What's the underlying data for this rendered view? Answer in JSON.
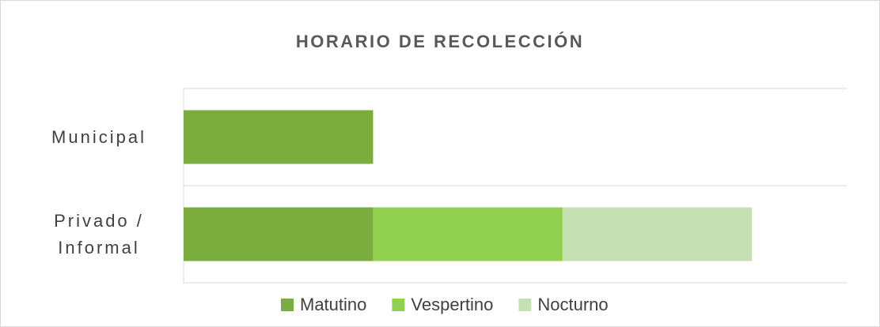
{
  "chart_data": {
    "type": "stacked_bar_horizontal",
    "title": "HORARIO DE RECOLECCIÓN",
    "categories": [
      "Municipal",
      "Privado / Informal"
    ],
    "series": [
      {
        "name": "Matutino",
        "color": "#7aac3e",
        "values": [
          1,
          1
        ]
      },
      {
        "name": "Vespertino",
        "color": "#92d050",
        "values": [
          null,
          1
        ]
      },
      {
        "name": "Nocturno",
        "color": "#c5e0b3",
        "values": [
          null,
          1
        ]
      }
    ],
    "xlim": [
      0,
      3.5
    ],
    "legend": "bottom"
  }
}
